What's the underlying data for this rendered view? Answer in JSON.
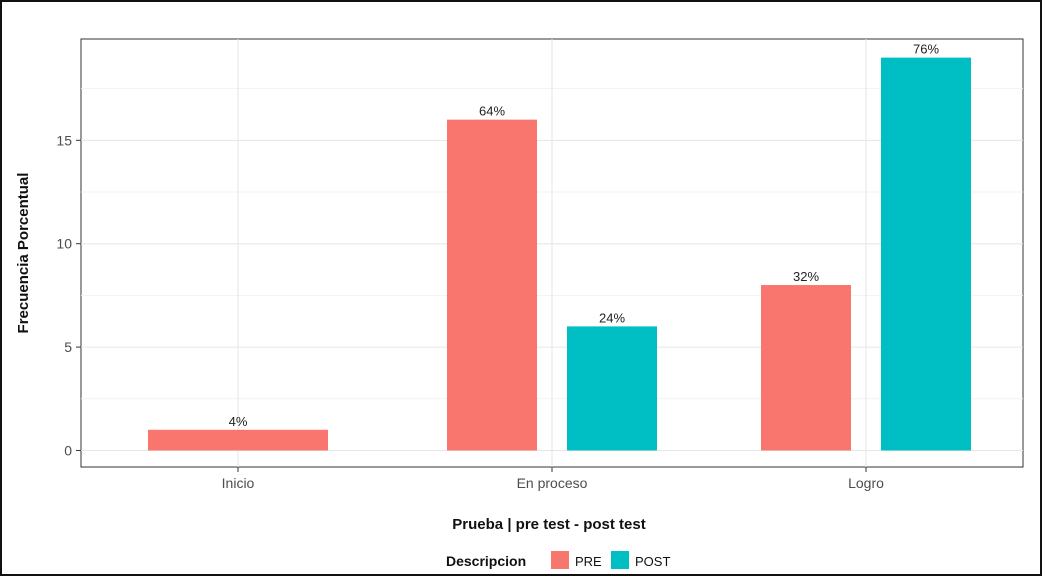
{
  "chart_data": {
    "type": "bar",
    "categories": [
      "Inicio",
      "En proceso",
      "Logro"
    ],
    "series": [
      {
        "name": "PRE",
        "values": [
          1,
          16,
          8
        ],
        "labels": [
          "4%",
          "64%",
          "32%"
        ],
        "color": "#F8766D"
      },
      {
        "name": "POST",
        "values": [
          0,
          6,
          19
        ],
        "labels": [
          null,
          "24%",
          "76%"
        ],
        "color": "#00BFC4"
      }
    ],
    "xlabel": "Prueba | pre test - post test",
    "ylabel": "Frecuencia Porcentual",
    "ylim": [
      -0.8,
      19.9
    ],
    "yticks": [
      0,
      5,
      10,
      15
    ],
    "legend_title": "Descripcion",
    "legend_position": "bottom",
    "grid": true
  }
}
